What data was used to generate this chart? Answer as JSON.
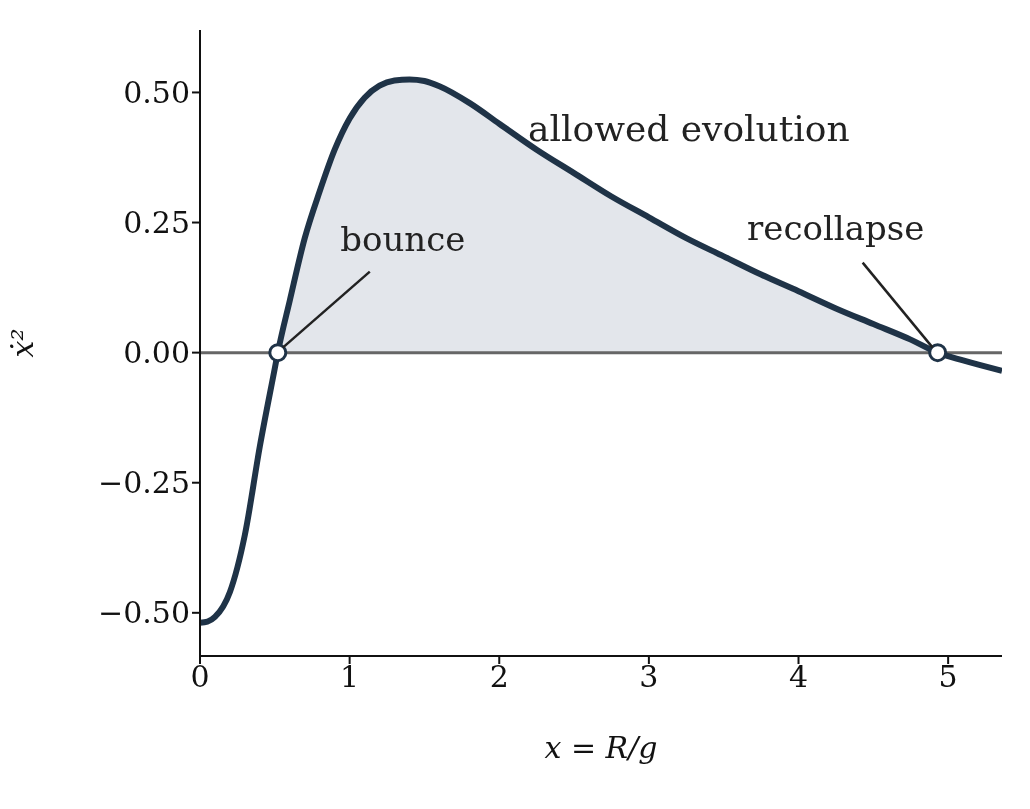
{
  "chart_data": {
    "type": "line",
    "xlabel": "x = R/g",
    "ylabel": "ẋ²",
    "xlim": [
      0,
      5.36
    ],
    "ylim": [
      -0.583,
      0.62
    ],
    "xticks": [
      0,
      1,
      2,
      3,
      4,
      5
    ],
    "yticks": [
      {
        "value": -0.5,
        "label": "−0.50"
      },
      {
        "value": -0.25,
        "label": "−0.25"
      },
      {
        "value": 0,
        "label": "0.00"
      },
      {
        "value": 0.25,
        "label": "0.25"
      },
      {
        "value": 0.5,
        "label": "0.50"
      }
    ],
    "series": [
      {
        "type": "area",
        "color": "#e3e6eb",
        "x": [
          0.52,
          0.6,
          0.7,
          0.8,
          0.9,
          1.0,
          1.1,
          1.2,
          1.3,
          1.4,
          1.5,
          1.6,
          1.8,
          2.0,
          2.25,
          2.5,
          2.75,
          3.0,
          3.25,
          3.5,
          3.75,
          4.0,
          4.25,
          4.5,
          4.75,
          4.93
        ],
        "values": [
          0,
          0.1,
          0.22,
          0.31,
          0.39,
          0.45,
          0.49,
          0.513,
          0.523,
          0.525,
          0.522,
          0.512,
          0.48,
          0.44,
          0.39,
          0.345,
          0.3,
          0.26,
          0.22,
          0.185,
          0.15,
          0.118,
          0.085,
          0.055,
          0.025,
          0
        ]
      },
      {
        "color": "#1f3347",
        "line_style": "solid",
        "marker": "none",
        "x": [
          0,
          0.05,
          0.1,
          0.2,
          0.3,
          0.4,
          0.5,
          0.52,
          0.6,
          0.7,
          0.8,
          0.9,
          1.0,
          1.1,
          1.2,
          1.3,
          1.4,
          1.5,
          1.6,
          1.8,
          2.0,
          2.25,
          2.5,
          2.75,
          3.0,
          3.25,
          3.5,
          3.75,
          4.0,
          4.25,
          4.5,
          4.75,
          4.93,
          5.1,
          5.36
        ],
        "values": [
          -0.519,
          -0.517,
          -0.508,
          -0.46,
          -0.35,
          -0.18,
          -0.03,
          0,
          0.1,
          0.22,
          0.31,
          0.39,
          0.45,
          0.49,
          0.513,
          0.523,
          0.525,
          0.522,
          0.512,
          0.48,
          0.44,
          0.39,
          0.345,
          0.3,
          0.26,
          0.22,
          0.185,
          0.15,
          0.118,
          0.085,
          0.055,
          0.025,
          0,
          -0.015,
          -0.035
        ]
      },
      {
        "type": "scatter",
        "color": "#1f3347",
        "marker": "circle",
        "x": [
          0.52,
          4.93
        ],
        "values": [
          0,
          0
        ]
      }
    ],
    "ref_lines": [
      {
        "axis": "y",
        "value": 0,
        "color": "#666666"
      }
    ],
    "annotations": [
      "allowed evolution",
      {
        "text": "bounce",
        "x": 0.52,
        "y": 0
      },
      {
        "text": "recollapse",
        "x": 4.93,
        "y": 0
      }
    ]
  }
}
